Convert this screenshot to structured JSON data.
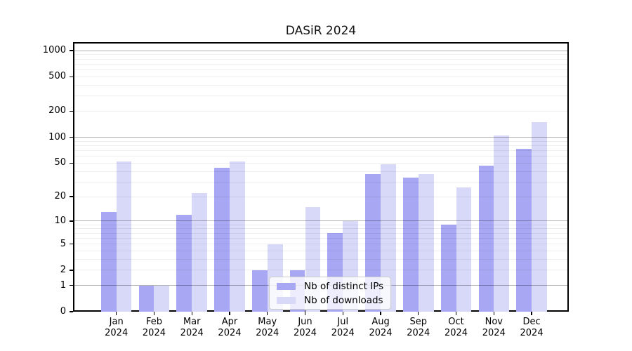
{
  "chart_data": {
    "type": "bar",
    "title": "DASiR 2024",
    "categories": [
      "Jan 2024",
      "Feb 2024",
      "Mar 2024",
      "Apr 2024",
      "May 2024",
      "Jun 2024",
      "Jul 2024",
      "Aug 2024",
      "Sep 2024",
      "Oct 2024",
      "Nov 2024",
      "Dec 2024"
    ],
    "series": [
      {
        "name": "Nb of distinct IPs",
        "color": "#a7a7f3",
        "values": [
          13,
          1,
          12,
          44,
          2,
          2,
          7,
          37,
          34,
          9,
          47,
          74
        ]
      },
      {
        "name": "Nb of downloads",
        "color": "#d8d8f9",
        "values": [
          52,
          1,
          22,
          52,
          5,
          15,
          10,
          48,
          37,
          26,
          104,
          150
        ]
      }
    ],
    "yscale": "log1p",
    "yticks": [
      0,
      1,
      2,
      5,
      10,
      20,
      50,
      100,
      200,
      500,
      1000
    ],
    "ylim": [
      0,
      1250
    ],
    "grid": "on",
    "legend_position": "lower-center"
  }
}
